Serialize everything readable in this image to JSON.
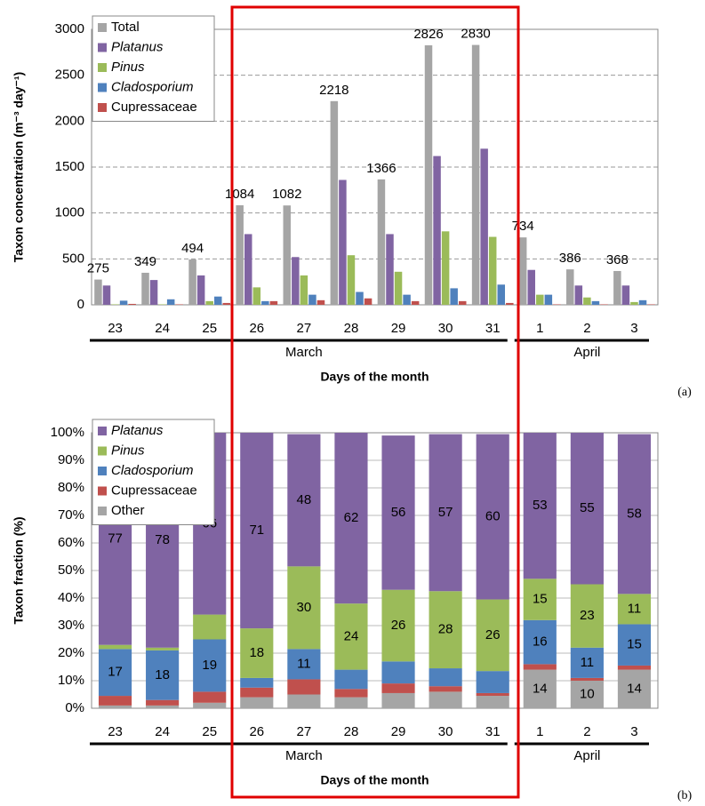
{
  "chart_data": [
    {
      "type": "bar",
      "categories": [
        "23",
        "24",
        "25",
        "26",
        "27",
        "28",
        "29",
        "30",
        "31",
        "1",
        "2",
        "3"
      ],
      "groups": [
        {
          "label": "March",
          "span": 9
        },
        {
          "label": "April",
          "span": 3
        }
      ],
      "series": [
        {
          "name": "Total",
          "color": "#a5a5a5",
          "values": [
            275,
            349,
            494,
            1084,
            1082,
            2218,
            1366,
            2826,
            2830,
            734,
            386,
            368
          ],
          "value_labels": [
            "275",
            "349",
            "494",
            "1084",
            "1082",
            "2218",
            "1366",
            "2826",
            "2830",
            "734",
            "386",
            "368"
          ]
        },
        {
          "name": "Platanus",
          "italic": true,
          "color": "#8064a2",
          "values": [
            210,
            270,
            320,
            770,
            520,
            1360,
            770,
            1620,
            1700,
            380,
            210,
            210
          ]
        },
        {
          "name": "Pinus",
          "italic": true,
          "color": "#9bbb59",
          "values": [
            5,
            5,
            40,
            190,
            320,
            540,
            360,
            800,
            740,
            110,
            80,
            30
          ]
        },
        {
          "name": "Cladosporium",
          "italic": true,
          "color": "#4f81bd",
          "values": [
            45,
            60,
            90,
            40,
            110,
            140,
            110,
            180,
            220,
            110,
            40,
            50
          ]
        },
        {
          "name": "Cupressaceae",
          "color": "#c0504d",
          "values": [
            10,
            5,
            20,
            40,
            50,
            70,
            40,
            40,
            20,
            5,
            5,
            5
          ]
        }
      ],
      "ylim": [
        0,
        3000
      ],
      "yticks": [
        0,
        500,
        1000,
        1500,
        2000,
        2500,
        3000
      ],
      "grid": "dashed",
      "ylabel": "Taxon concentration (m⁻³ day⁻¹)",
      "xlabel": "Days of the month",
      "legend": "upper left",
      "panel_label": "(a)"
    },
    {
      "type": "bar",
      "stacked": true,
      "categories": [
        "23",
        "24",
        "25",
        "26",
        "27",
        "28",
        "29",
        "30",
        "31",
        "1",
        "2",
        "3"
      ],
      "groups": [
        {
          "label": "March",
          "span": 9
        },
        {
          "label": "April",
          "span": 3
        }
      ],
      "series": [
        {
          "name": "Platanus",
          "italic": true,
          "color": "#8064a2",
          "values": [
            77,
            78,
            66,
            71,
            48,
            62,
            56,
            57,
            60,
            53,
            55,
            58
          ],
          "value_labels": [
            "77",
            "78",
            "66",
            "71",
            "48",
            "62",
            "56",
            "57",
            "60",
            "53",
            "55",
            "58"
          ]
        },
        {
          "name": "Pinus",
          "italic": true,
          "color": "#9bbb59",
          "values": [
            1.5,
            1,
            9,
            18,
            30,
            24,
            26,
            28,
            26,
            15,
            23,
            11
          ],
          "value_labels": [
            null,
            null,
            null,
            "18",
            "30",
            "24",
            "26",
            "28",
            "26",
            "15",
            "23",
            "11"
          ]
        },
        {
          "name": "Cladosporium",
          "italic": true,
          "color": "#4f81bd",
          "values": [
            17,
            18,
            19,
            3.5,
            11,
            7,
            8,
            6.5,
            8,
            16,
            11,
            15
          ],
          "value_labels": [
            "17",
            "18",
            "19",
            null,
            "11",
            null,
            null,
            null,
            null,
            "16",
            "11",
            "15"
          ]
        },
        {
          "name": "Cupressaceae",
          "color": "#c0504d",
          "values": [
            3.5,
            2,
            4,
            3.5,
            5.5,
            3,
            3.5,
            2,
            1,
            2,
            1,
            1.5
          ]
        },
        {
          "name": "Other",
          "color": "#a5a5a5",
          "values": [
            1,
            1,
            2,
            4,
            5,
            4,
            5.5,
            6,
            4.5,
            14,
            10,
            14
          ],
          "value_labels": [
            null,
            null,
            null,
            null,
            null,
            null,
            null,
            null,
            null,
            "14",
            "10",
            "14"
          ]
        }
      ],
      "ylim": [
        0,
        100
      ],
      "yticks": [
        {
          "value": 0,
          "label": "0%"
        },
        {
          "value": 10,
          "label": "10%"
        },
        {
          "value": 20,
          "label": "20%"
        },
        {
          "value": 30,
          "label": "30%"
        },
        {
          "value": 40,
          "label": "40%"
        },
        {
          "value": 50,
          "label": "50%"
        },
        {
          "value": 60,
          "label": "60%"
        },
        {
          "value": 70,
          "label": "70%"
        },
        {
          "value": 80,
          "label": "80%"
        },
        {
          "value": 90,
          "label": "90%"
        },
        {
          "value": 100,
          "label": "100%"
        }
      ],
      "grid": "solid",
      "ylabel": "Taxon fraction (%)",
      "xlabel": "Days of the month",
      "legend": "upper left",
      "panel_label": "(b)"
    }
  ]
}
